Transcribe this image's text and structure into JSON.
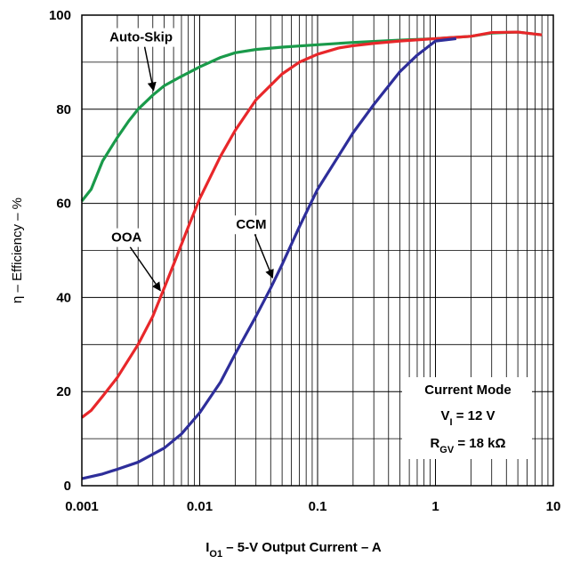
{
  "chart_data": {
    "type": "line",
    "xscale": "log",
    "xlim": [
      0.001,
      10
    ],
    "ylim": [
      0,
      100
    ],
    "xticks": [
      "0.001",
      "0.01",
      "0.1",
      "1",
      "10"
    ],
    "yticks": [
      "0",
      "20",
      "40",
      "60",
      "80",
      "100"
    ],
    "ylabel": "η – Efficiency – %",
    "xlabel": {
      "symbol": "I",
      "subscript": "O1",
      "text": " – 5-V Output Current –  A"
    },
    "grid": true,
    "series": [
      {
        "name": "Auto-Skip",
        "color": "#1a9a4a",
        "points": [
          [
            0.001,
            60.5
          ],
          [
            0.0012,
            63
          ],
          [
            0.0015,
            69
          ],
          [
            0.002,
            74
          ],
          [
            0.0025,
            77.5
          ],
          [
            0.003,
            80
          ],
          [
            0.004,
            83
          ],
          [
            0.005,
            85
          ],
          [
            0.007,
            87
          ],
          [
            0.01,
            89
          ],
          [
            0.015,
            91
          ],
          [
            0.02,
            92
          ],
          [
            0.03,
            92.7
          ],
          [
            0.05,
            93.2
          ],
          [
            0.1,
            93.7
          ],
          [
            0.2,
            94.2
          ],
          [
            0.5,
            94.7
          ],
          [
            1,
            95
          ],
          [
            2,
            95.5
          ],
          [
            3,
            96.2
          ],
          [
            5,
            96.4
          ],
          [
            8,
            95.8
          ]
        ]
      },
      {
        "name": "OOA",
        "color": "#e8272a",
        "points": [
          [
            0.001,
            14.5
          ],
          [
            0.0012,
            16
          ],
          [
            0.0015,
            19
          ],
          [
            0.002,
            23
          ],
          [
            0.003,
            30
          ],
          [
            0.004,
            36
          ],
          [
            0.005,
            42
          ],
          [
            0.006,
            47
          ],
          [
            0.008,
            55
          ],
          [
            0.01,
            61
          ],
          [
            0.015,
            70
          ],
          [
            0.02,
            75.5
          ],
          [
            0.03,
            82
          ],
          [
            0.05,
            87.5
          ],
          [
            0.07,
            90
          ],
          [
            0.1,
            91.7
          ],
          [
            0.15,
            93
          ],
          [
            0.2,
            93.5
          ],
          [
            0.3,
            94
          ],
          [
            0.5,
            94.5
          ],
          [
            1,
            95
          ],
          [
            2,
            95.5
          ],
          [
            3,
            96.3
          ],
          [
            5,
            96.4
          ],
          [
            8,
            95.8
          ]
        ]
      },
      {
        "name": "CCM",
        "color": "#2e2e9a",
        "points": [
          [
            0.001,
            1.5
          ],
          [
            0.0015,
            2.5
          ],
          [
            0.002,
            3.5
          ],
          [
            0.003,
            5
          ],
          [
            0.005,
            8
          ],
          [
            0.007,
            11
          ],
          [
            0.01,
            15.5
          ],
          [
            0.015,
            22
          ],
          [
            0.02,
            28
          ],
          [
            0.03,
            36
          ],
          [
            0.04,
            42
          ],
          [
            0.05,
            47
          ],
          [
            0.07,
            55
          ],
          [
            0.1,
            63
          ],
          [
            0.15,
            70
          ],
          [
            0.2,
            75
          ],
          [
            0.3,
            81
          ],
          [
            0.5,
            88
          ],
          [
            0.7,
            91.5
          ],
          [
            1,
            94.5
          ],
          [
            1.5,
            95
          ]
        ]
      }
    ],
    "annotations": [
      {
        "label": "Auto-Skip",
        "series": "Auto-Skip",
        "x": 0.0042
      },
      {
        "label": "OOA",
        "series": "OOA",
        "x": 0.0048
      },
      {
        "label": "CCM",
        "series": "CCM",
        "x": 0.043
      }
    ],
    "conditions": {
      "title": "Current Mode",
      "vin": {
        "symbol": "V",
        "subscript": "I",
        "text": " = 12 V"
      },
      "rgv": {
        "symbol": "R",
        "subscript": "GV",
        "text": " = 18 kΩ"
      }
    }
  }
}
